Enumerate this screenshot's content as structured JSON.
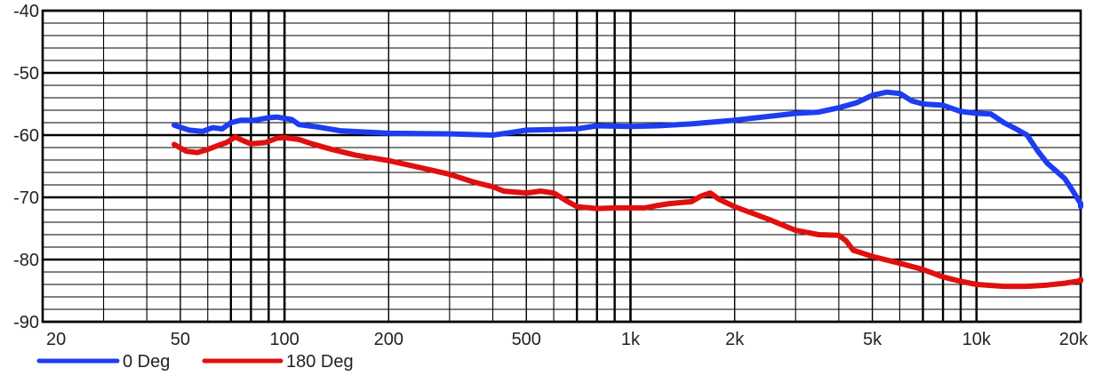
{
  "chart_data": {
    "type": "line",
    "title": "",
    "xlabel": "",
    "ylabel": "",
    "x_scale": "log",
    "xlim": [
      20,
      20000
    ],
    "ylim": [
      -90,
      -40
    ],
    "grid": true,
    "legend_position": "bottom-left",
    "x_ticks": [
      {
        "value": 20,
        "label": "20"
      },
      {
        "value": 50,
        "label": "50"
      },
      {
        "value": 100,
        "label": "100"
      },
      {
        "value": 200,
        "label": "200"
      },
      {
        "value": 500,
        "label": "500"
      },
      {
        "value": 1000,
        "label": "1k"
      },
      {
        "value": 2000,
        "label": "2k"
      },
      {
        "value": 5000,
        "label": "5k"
      },
      {
        "value": 10000,
        "label": "10k"
      },
      {
        "value": 20000,
        "label": "20k"
      }
    ],
    "y_ticks": [
      {
        "value": -40,
        "label": "-40"
      },
      {
        "value": -50,
        "label": "-50"
      },
      {
        "value": -60,
        "label": "-60"
      },
      {
        "value": -70,
        "label": "-70"
      },
      {
        "value": -80,
        "label": "-80"
      },
      {
        "value": -90,
        "label": "-90"
      }
    ],
    "series": [
      {
        "name": "0 Deg",
        "color": "#1e3cf0",
        "points": [
          [
            48,
            -58.4
          ],
          [
            53,
            -59.2
          ],
          [
            58,
            -59.4
          ],
          [
            62,
            -58.8
          ],
          [
            66,
            -59.0
          ],
          [
            70,
            -58.0
          ],
          [
            75,
            -57.6
          ],
          [
            82,
            -57.6
          ],
          [
            90,
            -57.2
          ],
          [
            95,
            -57.1
          ],
          [
            105,
            -57.5
          ],
          [
            110,
            -58.3
          ],
          [
            125,
            -58.7
          ],
          [
            145,
            -59.3
          ],
          [
            200,
            -59.7
          ],
          [
            300,
            -59.8
          ],
          [
            400,
            -60.0
          ],
          [
            450,
            -59.6
          ],
          [
            500,
            -59.2
          ],
          [
            600,
            -59.1
          ],
          [
            700,
            -59.0
          ],
          [
            800,
            -58.5
          ],
          [
            1000,
            -58.6
          ],
          [
            1200,
            -58.5
          ],
          [
            1500,
            -58.2
          ],
          [
            2000,
            -57.6
          ],
          [
            2500,
            -57.0
          ],
          [
            3000,
            -56.5
          ],
          [
            3500,
            -56.3
          ],
          [
            4000,
            -55.6
          ],
          [
            4500,
            -54.8
          ],
          [
            5000,
            -53.6
          ],
          [
            5500,
            -53.1
          ],
          [
            6000,
            -53.3
          ],
          [
            6500,
            -54.5
          ],
          [
            7000,
            -55.0
          ],
          [
            8000,
            -55.2
          ],
          [
            9000,
            -56.2
          ],
          [
            10000,
            -56.5
          ],
          [
            11000,
            -56.6
          ],
          [
            12000,
            -58.0
          ],
          [
            13000,
            -59.0
          ],
          [
            14000,
            -60.0
          ],
          [
            15000,
            -62.5
          ],
          [
            16000,
            -64.5
          ],
          [
            18000,
            -67.0
          ],
          [
            19000,
            -69.0
          ],
          [
            20000,
            -71.0
          ],
          [
            21000,
            -71.5
          ]
        ]
      },
      {
        "name": "180 Deg",
        "color": "#e01010",
        "points": [
          [
            48,
            -61.5
          ],
          [
            52,
            -62.6
          ],
          [
            56,
            -62.8
          ],
          [
            60,
            -62.3
          ],
          [
            64,
            -61.7
          ],
          [
            68,
            -61.2
          ],
          [
            72,
            -60.3
          ],
          [
            76,
            -60.9
          ],
          [
            80,
            -61.4
          ],
          [
            88,
            -61.2
          ],
          [
            95,
            -60.5
          ],
          [
            100,
            -60.4
          ],
          [
            110,
            -60.7
          ],
          [
            120,
            -61.4
          ],
          [
            135,
            -62.2
          ],
          [
            160,
            -63.2
          ],
          [
            200,
            -64.1
          ],
          [
            250,
            -65.3
          ],
          [
            300,
            -66.3
          ],
          [
            350,
            -67.5
          ],
          [
            400,
            -68.3
          ],
          [
            430,
            -69.0
          ],
          [
            500,
            -69.3
          ],
          [
            550,
            -69.0
          ],
          [
            600,
            -69.3
          ],
          [
            650,
            -70.5
          ],
          [
            700,
            -71.5
          ],
          [
            800,
            -71.8
          ],
          [
            900,
            -71.7
          ],
          [
            1000,
            -71.7
          ],
          [
            1100,
            -71.7
          ],
          [
            1200,
            -71.3
          ],
          [
            1300,
            -71.0
          ],
          [
            1500,
            -70.7
          ],
          [
            1600,
            -69.8
          ],
          [
            1700,
            -69.3
          ],
          [
            1800,
            -70.3
          ],
          [
            2000,
            -71.5
          ],
          [
            2500,
            -73.5
          ],
          [
            3000,
            -75.3
          ],
          [
            3500,
            -76.0
          ],
          [
            4000,
            -76.1
          ],
          [
            4200,
            -77.0
          ],
          [
            4400,
            -78.5
          ],
          [
            5000,
            -79.5
          ],
          [
            6000,
            -80.6
          ],
          [
            7000,
            -81.6
          ],
          [
            8000,
            -82.8
          ],
          [
            9000,
            -83.5
          ],
          [
            10000,
            -84.0
          ],
          [
            12000,
            -84.3
          ],
          [
            14000,
            -84.3
          ],
          [
            16000,
            -84.1
          ],
          [
            18000,
            -83.8
          ],
          [
            20000,
            -83.4
          ],
          [
            21000,
            -83.2
          ]
        ]
      }
    ]
  }
}
